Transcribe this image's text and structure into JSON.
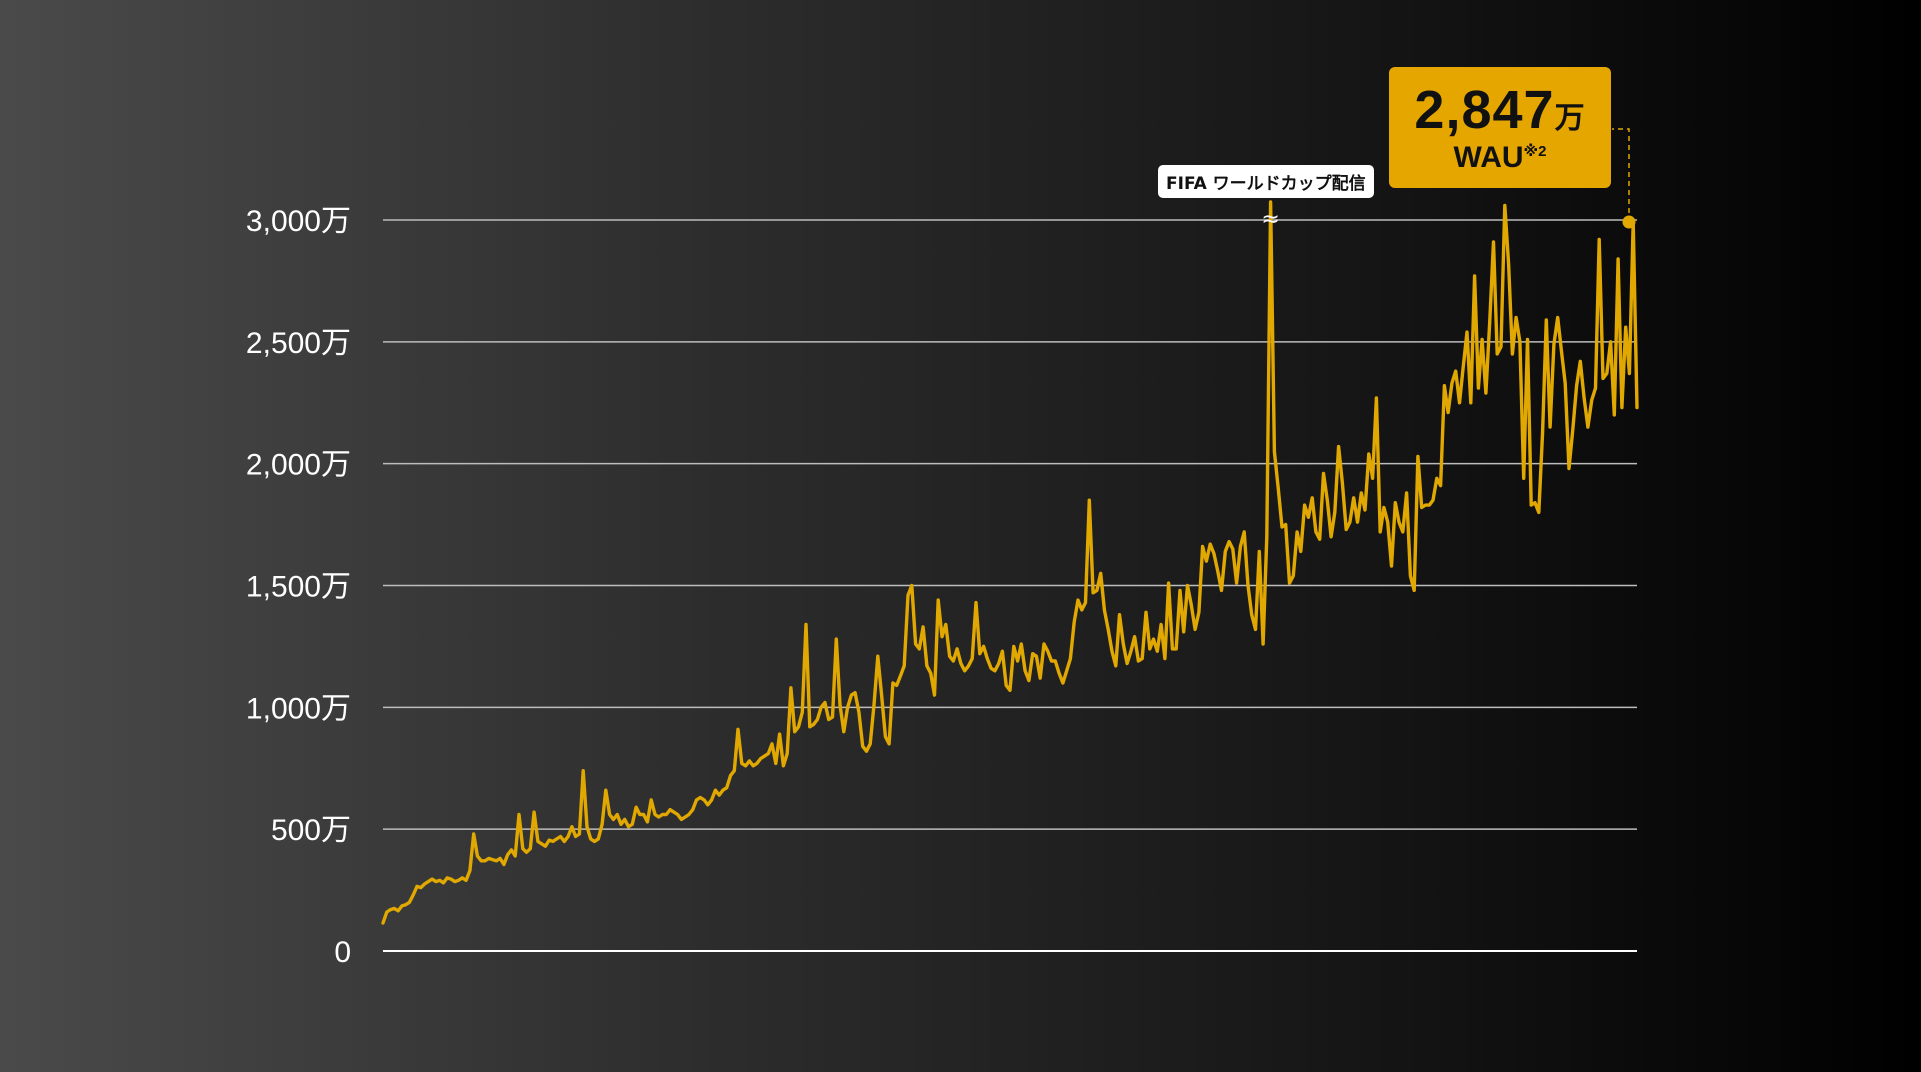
{
  "chart_data": {
    "type": "line",
    "y_tick_labels": [
      "0",
      "500万",
      "1,000万",
      "1,500万",
      "2,000万",
      "2,500万",
      "3,000万"
    ],
    "y_tick_values": [
      0,
      500,
      1000,
      1500,
      2000,
      2500,
      3000
    ],
    "ylim": [
      0,
      3000
    ],
    "grid": true,
    "series_color": "#e0a800",
    "series": [
      {
        "values": [
          115,
          160,
          170,
          175,
          165,
          185,
          190,
          200,
          230,
          265,
          260,
          275,
          285,
          295,
          285,
          290,
          280,
          300,
          295,
          285,
          290,
          300,
          290,
          330,
          480,
          390,
          370,
          370,
          380,
          375,
          370,
          380,
          355,
          395,
          415,
          390,
          560,
          420,
          405,
          420,
          570,
          450,
          440,
          430,
          455,
          450,
          460,
          470,
          450,
          470,
          510,
          470,
          480,
          740,
          510,
          460,
          450,
          460,
          520,
          660,
          560,
          540,
          560,
          520,
          540,
          510,
          520,
          590,
          560,
          560,
          530,
          620,
          560,
          550,
          560,
          560,
          580,
          570,
          560,
          540,
          550,
          560,
          580,
          620,
          630,
          620,
          600,
          620,
          660,
          640,
          660,
          670,
          720,
          740,
          910,
          770,
          760,
          780,
          760,
          770,
          790,
          800,
          810,
          850,
          770,
          890,
          760,
          810,
          1080,
          900,
          920,
          980,
          1340,
          920,
          930,
          950,
          1000,
          1020,
          950,
          960,
          1280,
          1010,
          900,
          1000,
          1050,
          1060,
          980,
          840,
          820,
          850,
          1010,
          1210,
          1050,
          880,
          850,
          1100,
          1090,
          1130,
          1170,
          1460,
          1500,
          1260,
          1240,
          1330,
          1170,
          1140,
          1050,
          1440,
          1290,
          1340,
          1210,
          1190,
          1240,
          1180,
          1150,
          1170,
          1200,
          1430,
          1220,
          1250,
          1200,
          1160,
          1150,
          1180,
          1230,
          1090,
          1070,
          1250,
          1190,
          1260,
          1150,
          1110,
          1220,
          1210,
          1120,
          1260,
          1230,
          1190,
          1190,
          1140,
          1100,
          1150,
          1200,
          1350,
          1440,
          1400,
          1430,
          1850,
          1470,
          1480,
          1550,
          1400,
          1320,
          1230,
          1170,
          1380,
          1260,
          1180,
          1230,
          1290,
          1190,
          1200,
          1390,
          1240,
          1280,
          1230,
          1340,
          1200,
          1510,
          1240,
          1240,
          1480,
          1310,
          1500,
          1420,
          1320,
          1390,
          1660,
          1600,
          1670,
          1630,
          1560,
          1480,
          1640,
          1680,
          1650,
          1510,
          1660,
          1720,
          1500,
          1380,
          1320,
          1640,
          1260,
          1700,
          3100,
          2050,
          1900,
          1740,
          1750,
          1510,
          1540,
          1720,
          1640,
          1830,
          1780,
          1860,
          1720,
          1690,
          1960,
          1850,
          1700,
          1800,
          2070,
          1920,
          1730,
          1760,
          1860,
          1760,
          1880,
          1810,
          2040,
          1940,
          2270,
          1720,
          1820,
          1760,
          1580,
          1840,
          1760,
          1720,
          1880,
          1540,
          1480,
          2030,
          1820,
          1830,
          1830,
          1850,
          1940,
          1910,
          2320,
          2210,
          2330,
          2380,
          2250,
          2400,
          2540,
          2250,
          2770,
          2310,
          2510,
          2290,
          2580,
          2910,
          2450,
          2480,
          3060,
          2820,
          2450,
          2600,
          2500,
          1940,
          2510,
          1830,
          1840,
          1800,
          2130,
          2590,
          2150,
          2490,
          2600,
          2460,
          2330,
          1980,
          2140,
          2320,
          2420,
          2270,
          2150,
          2260,
          2310,
          2920,
          2350,
          2370,
          2500,
          2200,
          2840,
          2230,
          2560,
          2370,
          2990,
          2230
        ]
      }
    ],
    "annotations": {
      "event_tag": "FIFA ワールドカップ配信",
      "break_mark": "≈",
      "callout_value": "2,847",
      "callout_unit": "万",
      "callout_label": "WAU",
      "callout_note": "※2"
    }
  }
}
